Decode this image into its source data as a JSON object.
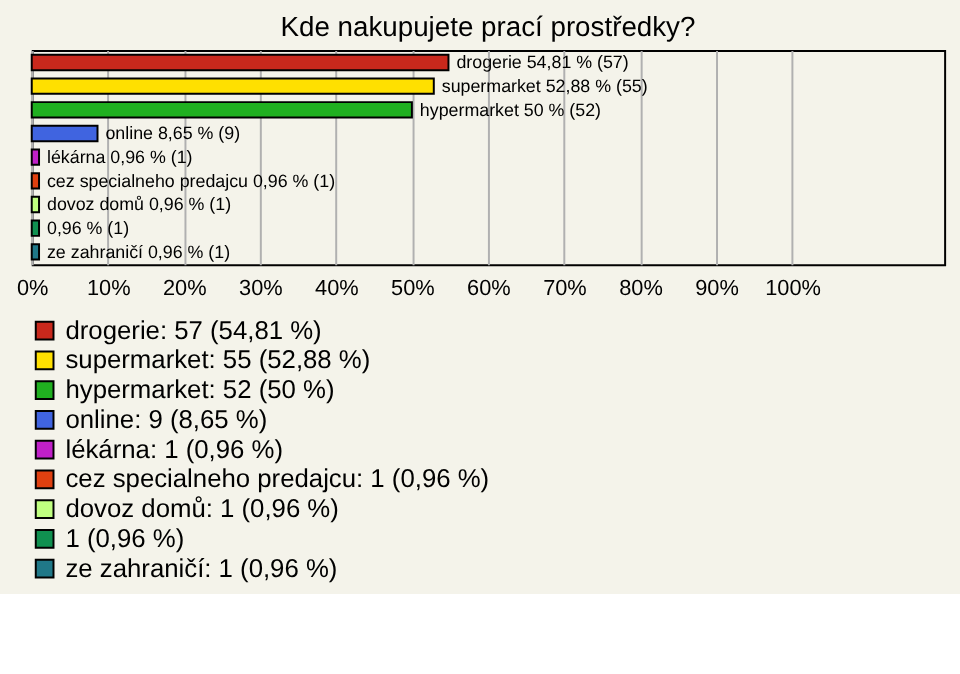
{
  "chart_data": {
    "type": "bar",
    "orientation": "horizontal",
    "title": "Kde nakupujete prací prostředky?",
    "categories": [
      "drogerie",
      "supermarket",
      "hypermarket",
      "online",
      "lékárna",
      "cez specialneho predajcu",
      "dovoz domů",
      null,
      "ze zahraničí"
    ],
    "series": [
      {
        "name": "drogerie: 57 (54,81 %)",
        "color": "#c8281c",
        "values": [
          54.81,
          null,
          null,
          null,
          null,
          null,
          null,
          null,
          null
        ],
        "value_labels": [
          "54,81 % (57)",
          null,
          null,
          null,
          null,
          null,
          null,
          null,
          null
        ]
      },
      {
        "name": "supermarket: 55 (52,88 %)",
        "color": "#ffe000",
        "values": [
          null,
          52.88,
          null,
          null,
          null,
          null,
          null,
          null,
          null
        ],
        "value_labels": [
          null,
          "52,88 % (55)",
          null,
          null,
          null,
          null,
          null,
          null,
          null
        ]
      },
      {
        "name": "hypermarket: 52 (50 %)",
        "color": "#20b020",
        "values": [
          null,
          null,
          50,
          null,
          null,
          null,
          null,
          null,
          null
        ],
        "value_labels": [
          null,
          null,
          "50 % (52)",
          null,
          null,
          null,
          null,
          null,
          null
        ]
      },
      {
        "name": "online: 9 (8,65 %)",
        "color": "#4064e0",
        "values": [
          null,
          null,
          null,
          8.65,
          null,
          null,
          null,
          null,
          null
        ],
        "value_labels": [
          null,
          null,
          null,
          "8,65 % (9)",
          null,
          null,
          null,
          null,
          null
        ]
      },
      {
        "name": "lékárna: 1 (0,96 %)",
        "color": "#c020c8",
        "values": [
          null,
          null,
          null,
          null,
          0.96,
          null,
          null,
          null,
          null
        ],
        "value_labels": [
          null,
          null,
          null,
          null,
          "0,96 % (1)",
          null,
          null,
          null,
          null
        ]
      },
      {
        "name": "cez specialneho predajcu: 1 (0,96 %)",
        "color": "#e04010",
        "values": [
          null,
          null,
          null,
          null,
          null,
          0.96,
          null,
          null,
          null
        ],
        "value_labels": [
          null,
          null,
          null,
          null,
          null,
          "0,96 % (1)",
          null,
          null,
          null
        ]
      },
      {
        "name": "dovoz domů: 1 (0,96 %)",
        "color": "#c0ff80",
        "values": [
          null,
          null,
          null,
          null,
          null,
          null,
          0.96,
          null,
          null
        ],
        "value_labels": [
          null,
          null,
          null,
          null,
          null,
          null,
          "0,96 % (1)",
          null,
          null
        ]
      },
      {
        "name": "1 (0,96 %)",
        "color": "#109050",
        "values": [
          null,
          null,
          null,
          null,
          null,
          null,
          null,
          0.96,
          null
        ],
        "value_labels": [
          null,
          null,
          null,
          null,
          null,
          null,
          null,
          "0,96 % (1)",
          null
        ]
      },
      {
        "name": "ze zahraničí: 1 (0,96 %)",
        "color": "#207888",
        "values": [
          null,
          null,
          null,
          null,
          null,
          null,
          null,
          null,
          0.96
        ],
        "value_labels": [
          null,
          null,
          null,
          null,
          null,
          null,
          null,
          null,
          "0,96 % (1)"
        ]
      }
    ],
    "xlim": [
      0,
      120
    ],
    "xticks": [
      {
        "value": 0,
        "label": "0%"
      },
      {
        "value": 10,
        "label": "10%"
      },
      {
        "value": 20,
        "label": "20%"
      },
      {
        "value": 30,
        "label": "30%"
      },
      {
        "value": 40,
        "label": "40%"
      },
      {
        "value": 50,
        "label": "50%"
      },
      {
        "value": 60,
        "label": "60%"
      },
      {
        "value": 70,
        "label": "70%"
      },
      {
        "value": 80,
        "label": "80%"
      },
      {
        "value": 90,
        "label": "90%"
      },
      {
        "value": 100,
        "label": "100%"
      }
    ],
    "grid": "x",
    "tick_labels": "x",
    "legend": "bottom"
  }
}
